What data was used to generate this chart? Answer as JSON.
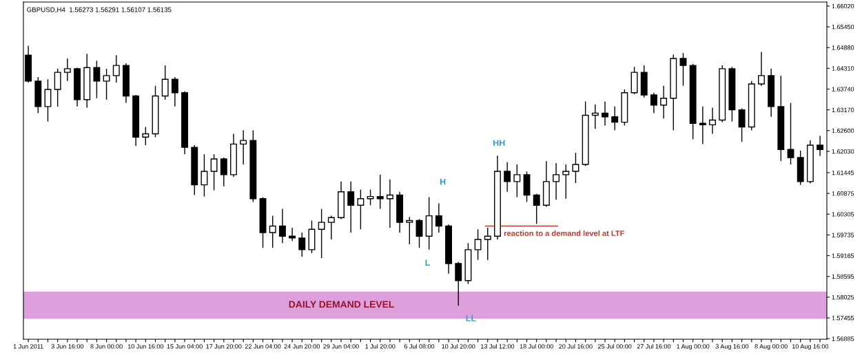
{
  "chart_data": {
    "type": "candlestick",
    "title": "GBPUSD,H4  1.56273 1.56291 1.56107 1.56135",
    "categories": [
      "1 Jun 2011",
      null,
      null,
      null,
      "3 Jun 16:00",
      null,
      null,
      null,
      "8 Jun 00:00",
      null,
      null,
      null,
      "10 Jun 16:00",
      null,
      null,
      null,
      "15 Jun 04:00",
      null,
      null,
      null,
      "17 Jun 20:00",
      null,
      null,
      null,
      "22 Jun 04:00",
      null,
      null,
      null,
      "24 Jun 20:00",
      null,
      null,
      null,
      "29 Jun 04:00",
      null,
      null,
      null,
      "1 Jul 20:00",
      null,
      null,
      null,
      "6 Jul 08:00",
      null,
      null,
      null,
      "10 Jul 20:00",
      null,
      null,
      null,
      "13 Jul 12:00",
      null,
      null,
      null,
      "18 Jul 00:00",
      null,
      null,
      null,
      "20 Jul 16:00",
      null,
      null,
      null,
      "25 Jul 00:00",
      null,
      null,
      null,
      "27 Jul 16:00",
      null,
      null,
      null,
      "1 Aug 00:00",
      null,
      null,
      null,
      "3 Aug 16:00",
      null,
      null,
      null,
      "8 Aug 00:00",
      null,
      null,
      null,
      "10 Aug 16:00",
      null
    ],
    "ohlc": [
      [
        1.6467,
        1.6493,
        1.6392,
        1.6396
      ],
      [
        1.6396,
        1.6407,
        1.6308,
        1.6326
      ],
      [
        1.6326,
        1.6401,
        1.6285,
        1.6373
      ],
      [
        1.6373,
        1.643,
        1.6326,
        1.642
      ],
      [
        1.642,
        1.6458,
        1.6396,
        1.643
      ],
      [
        1.643,
        1.6433,
        1.6326,
        1.6345
      ],
      [
        1.6345,
        1.6471,
        1.6323,
        1.6433
      ],
      [
        1.6433,
        1.6452,
        1.6349,
        1.6396
      ],
      [
        1.6396,
        1.643,
        1.6345,
        1.6411
      ],
      [
        1.6411,
        1.6467,
        1.6392,
        1.6439
      ],
      [
        1.6439,
        1.6445,
        1.6336,
        1.6355
      ],
      [
        1.6355,
        1.6358,
        1.6218,
        1.6242
      ],
      [
        1.6242,
        1.627,
        1.622,
        1.6251
      ],
      [
        1.6251,
        1.6383,
        1.6242,
        1.6355
      ],
      [
        1.6355,
        1.6439,
        1.6345,
        1.6401
      ],
      [
        1.6401,
        1.6407,
        1.6326,
        1.6364
      ],
      [
        1.6364,
        1.6368,
        1.6195,
        1.6214
      ],
      [
        1.6214,
        1.622,
        1.6083,
        1.6111
      ],
      [
        1.6111,
        1.6195,
        1.6079,
        1.6148
      ],
      [
        1.6148,
        1.6195,
        1.6096,
        1.6182
      ],
      [
        1.6182,
        1.6186,
        1.6107,
        1.6139
      ],
      [
        1.6139,
        1.6251,
        1.6133,
        1.6223
      ],
      [
        1.6223,
        1.6261,
        1.6167,
        1.6233
      ],
      [
        1.6233,
        1.6261,
        1.6064,
        1.6073
      ],
      [
        1.6073,
        1.6077,
        1.5938,
        1.598
      ],
      [
        1.598,
        1.6026,
        1.5938,
        1.5998
      ],
      [
        1.5998,
        1.6045,
        1.5951,
        1.597
      ],
      [
        1.597,
        1.5993,
        1.5957,
        1.5965
      ],
      [
        1.5965,
        1.598,
        1.5914,
        1.5933
      ],
      [
        1.5933,
        1.6013,
        1.5923,
        1.5989
      ],
      [
        1.5989,
        1.6045,
        1.591,
        1.6008
      ],
      [
        1.6008,
        1.6026,
        1.5961,
        1.6021
      ],
      [
        1.6021,
        1.612,
        1.6017,
        1.6092
      ],
      [
        1.6092,
        1.612,
        1.598,
        1.6055
      ],
      [
        1.6055,
        1.6098,
        1.5989,
        1.6073
      ],
      [
        1.6073,
        1.6098,
        1.6055,
        1.6079
      ],
      [
        1.6079,
        1.6139,
        1.6045,
        1.6073
      ],
      [
        1.6073,
        1.6126,
        1.5993,
        1.6083
      ],
      [
        1.6083,
        1.6092,
        1.598,
        1.6008
      ],
      [
        1.6008,
        1.6023,
        1.5948,
        1.6013
      ],
      [
        1.6013,
        1.6017,
        1.5938,
        1.597
      ],
      [
        1.597,
        1.6077,
        1.5933,
        1.6026
      ],
      [
        1.6026,
        1.606,
        1.598,
        1.5998
      ],
      [
        1.5998,
        1.6002,
        1.5867,
        1.5895
      ],
      [
        1.5895,
        1.5899,
        1.5779,
        1.5848
      ],
      [
        1.5848,
        1.5951,
        1.5839,
        1.5933
      ],
      [
        1.5933,
        1.5989,
        1.5905,
        1.5961
      ],
      [
        1.5961,
        1.5993,
        1.5905,
        1.597
      ],
      [
        1.597,
        1.6191,
        1.5961,
        1.6148
      ],
      [
        1.6148,
        1.6173,
        1.6092,
        1.612
      ],
      [
        1.612,
        1.6167,
        1.6077,
        1.6139
      ],
      [
        1.6139,
        1.6148,
        1.6064,
        1.6083
      ],
      [
        1.6083,
        1.6086,
        1.6004,
        1.6055
      ],
      [
        1.6055,
        1.6176,
        1.6051,
        1.612
      ],
      [
        1.612,
        1.6171,
        1.607,
        1.6139
      ],
      [
        1.6139,
        1.6167,
        1.6073,
        1.6148
      ],
      [
        1.6148,
        1.6199,
        1.6116,
        1.6167
      ],
      [
        1.6167,
        1.634,
        1.6163,
        1.6302
      ],
      [
        1.6302,
        1.6332,
        1.6265,
        1.6308
      ],
      [
        1.6308,
        1.634,
        1.6274,
        1.6298
      ],
      [
        1.6298,
        1.6326,
        1.6261,
        1.6283
      ],
      [
        1.6283,
        1.6373,
        1.6274,
        1.6364
      ],
      [
        1.6364,
        1.6435,
        1.636,
        1.642
      ],
      [
        1.642,
        1.6439,
        1.6351,
        1.6358
      ],
      [
        1.6358,
        1.6364,
        1.6308,
        1.633
      ],
      [
        1.633,
        1.6383,
        1.6293,
        1.6349
      ],
      [
        1.6349,
        1.6469,
        1.6261,
        1.6458
      ],
      [
        1.6458,
        1.6473,
        1.6383,
        1.6439
      ],
      [
        1.6439,
        1.6443,
        1.6236,
        1.628
      ],
      [
        1.628,
        1.6326,
        1.6223,
        1.6276
      ],
      [
        1.6276,
        1.6323,
        1.6251,
        1.6289
      ],
      [
        1.6289,
        1.6439,
        1.6283,
        1.643
      ],
      [
        1.643,
        1.6435,
        1.6285,
        1.6317
      ],
      [
        1.6317,
        1.6321,
        1.6229,
        1.627
      ],
      [
        1.627,
        1.6396,
        1.6261,
        1.6388
      ],
      [
        1.6388,
        1.6476,
        1.6383,
        1.6411
      ],
      [
        1.6411,
        1.643,
        1.6298,
        1.6326
      ],
      [
        1.6326,
        1.6411,
        1.6176,
        1.6208
      ],
      [
        1.6208,
        1.6336,
        1.6167,
        1.6186
      ],
      [
        1.6186,
        1.6205,
        1.6111,
        1.612
      ],
      [
        1.612,
        1.6233,
        1.6115,
        1.622
      ],
      [
        1.622,
        1.6246,
        1.619,
        1.6208
      ]
    ],
    "ylim": [
      1.5687,
      1.6613
    ],
    "yticks": [
      {
        "value": 1.6602,
        "label": "1.66020"
      },
      {
        "value": 1.6545,
        "label": "1.65450"
      },
      {
        "value": 1.6488,
        "label": "1.64880"
      },
      {
        "value": 1.6431,
        "label": "1.64310"
      },
      {
        "value": 1.6374,
        "label": "1.63740"
      },
      {
        "value": 1.6317,
        "label": "1.63170"
      },
      {
        "value": 1.626,
        "label": "1.62600"
      },
      {
        "value": 1.6203,
        "label": "1.62030"
      },
      {
        "value": 1.61445,
        "label": "1.61445"
      },
      {
        "value": 1.60875,
        "label": "1.60875"
      },
      {
        "value": 1.60305,
        "label": "1.60305"
      },
      {
        "value": 1.59735,
        "label": "1.59735"
      },
      {
        "value": 1.59165,
        "label": "1.59165"
      },
      {
        "value": 1.58595,
        "label": "1.58595"
      },
      {
        "value": 1.58025,
        "label": "1.58025"
      },
      {
        "value": 1.57455,
        "label": "1.57455"
      },
      {
        "value": 1.56885,
        "label": "1.56885"
      }
    ],
    "bands": [
      {
        "axis": "y",
        "from": 1.5743,
        "to": 1.5818,
        "label": "DAILY DEMAND LEVEL",
        "color": "#dda0dd"
      }
    ],
    "ref_lines": [
      {
        "axis": "y",
        "value": 1.5998,
        "label": "reaction to a demand level at LTF",
        "color": "#c0392b"
      }
    ],
    "annotations": [
      "H",
      "HH",
      "L",
      "LL"
    ],
    "grid": false
  }
}
